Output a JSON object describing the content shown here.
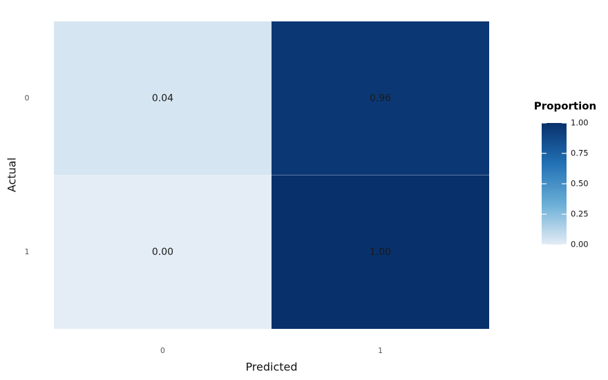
{
  "chart_data": {
    "type": "heatmap",
    "x_label": "Predicted",
    "y_label": "Actual",
    "x_categories": [
      "0",
      "1"
    ],
    "y_categories": [
      "0",
      "1"
    ],
    "values": [
      [
        0.04,
        0.96
      ],
      [
        0.0,
        1.0
      ]
    ],
    "value_labels": [
      [
        "0.04",
        "0.96"
      ],
      [
        "0.00",
        "1.00"
      ]
    ],
    "colorscale": [
      "#e4ecf5",
      "#6aaed6",
      "#2171b5",
      "#08306b"
    ],
    "legend_title": "Proportion",
    "zlim": [
      0,
      1
    ],
    "zticks": [
      {
        "value": 0,
        "label": "0.00"
      },
      {
        "value": 0.25,
        "label": "0.25"
      },
      {
        "value": 0.5,
        "label": "0.50"
      },
      {
        "value": 0.75,
        "label": "0.75"
      },
      {
        "value": 1,
        "label": "1.00"
      }
    ]
  }
}
